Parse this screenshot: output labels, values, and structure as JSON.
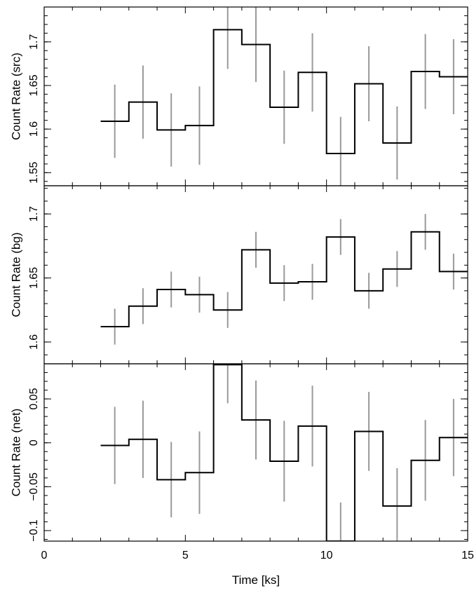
{
  "chart_data": {
    "type": "line",
    "style": "step-with-error-bars",
    "shared_x": {
      "label": "Time [ks]",
      "range": [
        0,
        15
      ],
      "ticks": [
        0,
        5,
        10,
        15
      ],
      "tick_labels": [
        "0",
        "5",
        "10",
        "15"
      ],
      "bin_edges": [
        2,
        3,
        4,
        5,
        6,
        7,
        8,
        9,
        10,
        11,
        12,
        13,
        14,
        15
      ],
      "bin_centers": [
        2.5,
        3.5,
        4.5,
        5.5,
        6.5,
        7.5,
        8.5,
        9.5,
        10.5,
        11.5,
        12.5,
        13.5,
        14.5
      ]
    },
    "panels": [
      {
        "ylabel": "Count Rate (src)",
        "ylim": [
          1.535,
          1.74
        ],
        "yticks": [
          1.55,
          1.6,
          1.65,
          1.7
        ],
        "ytick_labels": [
          "1.55",
          "1.6",
          "1.65",
          "1.7"
        ],
        "values": [
          1.609,
          1.631,
          1.599,
          1.604,
          1.714,
          1.697,
          1.625,
          1.665,
          1.572,
          1.652,
          1.584,
          1.666,
          1.66
        ],
        "errors": [
          0.042,
          0.042,
          0.042,
          0.045,
          0.045,
          0.043,
          0.042,
          0.045,
          0.042,
          0.043,
          0.042,
          0.043,
          0.043
        ],
        "line_color": "#000000",
        "error_color": "#999999"
      },
      {
        "ylabel": "Count Rate (bg)",
        "ylim": [
          1.583,
          1.722
        ],
        "yticks": [
          1.6,
          1.65,
          1.7
        ],
        "ytick_labels": [
          "1.6",
          "1.65",
          "1.7"
        ],
        "values": [
          1.612,
          1.628,
          1.641,
          1.637,
          1.625,
          1.672,
          1.646,
          1.647,
          1.682,
          1.64,
          1.657,
          1.686,
          1.655
        ],
        "errors": [
          0.014,
          0.014,
          0.014,
          0.014,
          0.014,
          0.014,
          0.014,
          0.014,
          0.014,
          0.014,
          0.014,
          0.014,
          0.014
        ],
        "line_color": "#000000",
        "error_color": "#999999"
      },
      {
        "ylabel": "Count Rate (net)",
        "ylim": [
          -0.112,
          0.09
        ],
        "yticks": [
          -0.1,
          -0.05,
          0,
          0.05
        ],
        "ytick_labels": [
          "−0.1",
          "−0.05",
          "0",
          "0.05"
        ],
        "values": [
          -0.003,
          0.004,
          -0.042,
          -0.034,
          0.089,
          0.026,
          -0.021,
          0.019,
          -0.112,
          0.013,
          -0.072,
          -0.02,
          0.006
        ],
        "errors": [
          0.044,
          0.044,
          0.043,
          0.047,
          0.044,
          0.045,
          0.046,
          0.046,
          0.044,
          0.045,
          0.043,
          0.046,
          0.044
        ],
        "line_color": "#000000",
        "error_color": "#999999"
      }
    ]
  }
}
